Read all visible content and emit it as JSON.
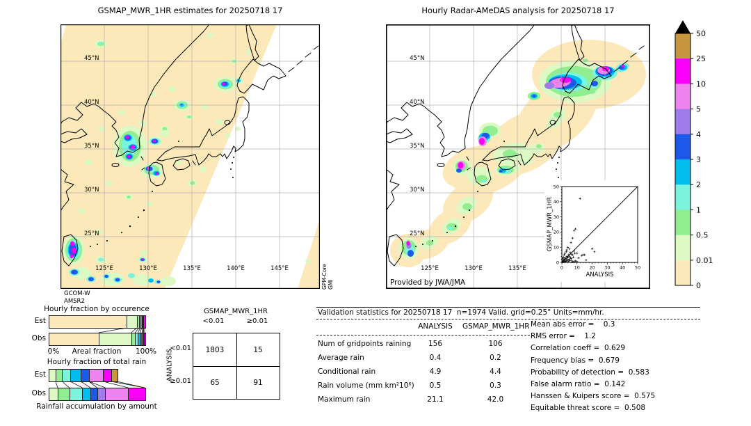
{
  "palette": {
    "cream": "#fce8b9",
    "palegreen": "#dcf9c4",
    "lightgreen": "#90ee90",
    "aqua": "#7bf4dd",
    "sky": "#00bdee",
    "blue": "#1c59e8",
    "purple": "#a07bea",
    "orchid": "#ee82ee",
    "magenta": "#fa00fa",
    "tan": "#c8963c",
    "overflow": "#000000",
    "grid": "#b0b0b0",
    "coast": "#000000",
    "nodata": "#ffffff"
  },
  "chart_data": {
    "map_left": {
      "type": "map",
      "title": "GSMAP_MWR_1HR estimates for 20250718 17",
      "lat_ticks": [
        "45°N",
        "40°N",
        "35°N",
        "30°N",
        "25°N"
      ],
      "lon_ticks": [
        "125°E",
        "130°E",
        "135°E",
        "140°E",
        "145°E"
      ],
      "satellite_lines": [
        "GCOM-W",
        "AMSR2"
      ],
      "swath_sensor_lines": [
        "GPM-Core",
        "GMI"
      ]
    },
    "map_right": {
      "type": "map",
      "title": "Hourly Radar-AMeDAS analysis for 20250718 17",
      "lat_ticks": [
        "45°N",
        "40°N",
        "35°N",
        "30°N",
        "25°N"
      ],
      "lon_ticks": [
        "125°E",
        "130°E",
        "135°E",
        "140°E",
        "145°E"
      ],
      "credit": "Provided by JWA/JMA"
    },
    "colorbar": {
      "type": "colorbar",
      "units": "mm/hr",
      "tick_labels_top_to_bottom": [
        "50",
        "25",
        "10",
        "5",
        "4",
        "3",
        "2",
        "1",
        "0.5",
        "0.01",
        "0"
      ],
      "segment_colors_top_to_bottom": [
        "tan",
        "magenta",
        "orchid",
        "purple",
        "blue",
        "sky",
        "aqua",
        "lightgreen",
        "palegreen",
        "cream"
      ],
      "overflow_marker": "black-triangle"
    },
    "scatter_inset": {
      "type": "scatter",
      "xlabel": "ANALYSIS",
      "ylabel": "GSMAP_MWR_1HR",
      "xlim": [
        0,
        50
      ],
      "ylim": [
        0,
        50
      ],
      "ticks": [
        0,
        10,
        20,
        30,
        40,
        50
      ],
      "one_to_one_line": true,
      "points": [
        [
          0.3,
          0.2
        ],
        [
          0.5,
          0.8
        ],
        [
          0.8,
          0.4
        ],
        [
          1,
          1.2
        ],
        [
          1.2,
          0.3
        ],
        [
          1.5,
          2
        ],
        [
          1.8,
          0.8
        ],
        [
          2,
          1.5
        ],
        [
          2.2,
          3
        ],
        [
          2.5,
          0.5
        ],
        [
          2.8,
          2.2
        ],
        [
          3,
          1
        ],
        [
          3.2,
          4
        ],
        [
          3.5,
          2.8
        ],
        [
          3.8,
          1.5
        ],
        [
          4,
          3.5
        ],
        [
          4.2,
          0.8
        ],
        [
          4.5,
          5
        ],
        [
          4.8,
          2
        ],
        [
          5,
          4
        ],
        [
          5.2,
          1.2
        ],
        [
          5.5,
          6.5
        ],
        [
          5.8,
          3
        ],
        [
          6,
          5.5
        ],
        [
          6.2,
          2.5
        ],
        [
          6.5,
          1
        ],
        [
          7,
          5
        ],
        [
          7.5,
          3.5
        ],
        [
          8,
          7.5
        ],
        [
          8.5,
          6
        ],
        [
          1,
          3.5
        ],
        [
          1.5,
          5
        ],
        [
          2,
          6
        ],
        [
          0.5,
          2.5
        ],
        [
          3,
          7
        ],
        [
          4,
          9.8
        ],
        [
          3.2,
          8.2
        ],
        [
          5,
          8.8
        ],
        [
          6,
          13
        ],
        [
          7,
          16
        ],
        [
          8,
          21
        ],
        [
          9,
          22
        ],
        [
          12,
          42
        ],
        [
          10,
          6
        ],
        [
          11,
          3
        ],
        [
          13,
          4.5
        ],
        [
          14,
          5
        ],
        [
          15,
          5
        ],
        [
          20,
          9
        ],
        [
          21.5,
          7
        ],
        [
          16,
          1.5
        ],
        [
          9,
          1
        ],
        [
          10,
          0.5
        ],
        [
          7,
          0.3
        ],
        [
          8,
          0.5
        ]
      ]
    },
    "occurrence": {
      "type": "bar",
      "title": "Hourly fraction by occurence",
      "xlabel": "Areal fraction",
      "x_min_label": "0%",
      "x_max_label": "100%",
      "rows": [
        {
          "label": "Est",
          "segments": [
            [
              "cream",
              81
            ],
            [
              "palegreen",
              11
            ],
            [
              "lightgreen",
              2
            ],
            [
              "aqua",
              1.5
            ],
            [
              "sky",
              1.3
            ],
            [
              "blue",
              1.2
            ],
            [
              "purple",
              0.8
            ],
            [
              "magenta",
              1.2
            ]
          ]
        },
        {
          "label": "Obs",
          "segments": [
            [
              "cream",
              52
            ],
            [
              "palegreen",
              34
            ],
            [
              "lightgreen",
              4
            ],
            [
              "aqua",
              3
            ],
            [
              "sky",
              2.5
            ],
            [
              "blue",
              1.7
            ],
            [
              "purple",
              1.1
            ],
            [
              "orchid",
              0.7
            ],
            [
              "magenta",
              1
            ]
          ]
        }
      ]
    },
    "total_rain": {
      "type": "bar",
      "title": "Hourly fraction of total rain",
      "caption": "Rainfall accumulation by amount",
      "rows": [
        {
          "label": "Est",
          "segments": [
            [
              "palegreen",
              7
            ],
            [
              "lightgreen",
              7
            ],
            [
              "aqua",
              8.5
            ],
            [
              "sky",
              11
            ],
            [
              "blue",
              8.5
            ],
            [
              "orchid",
              14.5
            ],
            [
              "magenta",
              8.5
            ],
            [
              "tan",
              6
            ]
          ]
        },
        {
          "label": "Obs",
          "segments": [
            [
              "palegreen",
              9.5
            ],
            [
              "lightgreen",
              12
            ],
            [
              "aqua",
              13.5
            ],
            [
              "sky",
              8.5
            ],
            [
              "blue",
              7
            ],
            [
              "purple",
              8.5
            ],
            [
              "orchid",
              24
            ],
            [
              "magenta",
              17
            ]
          ]
        }
      ]
    },
    "contingency": {
      "type": "table",
      "col_group": "GSMAP_MWR_1HR",
      "row_group": "ANALYSIS",
      "col_labels": [
        "<0.01",
        "≥0.01"
      ],
      "row_labels": [
        "<0.01",
        "≥0.01"
      ],
      "cells": [
        [
          "1803",
          "15"
        ],
        [
          "65",
          "91"
        ]
      ]
    },
    "validation": {
      "type": "table",
      "title": "Validation statistics for 20250718 17  n=1974 Valid. grid=0.25° Units=mm/hr.",
      "columns": [
        "ANALYSIS",
        "GSMAP_MWR_1HR"
      ],
      "rows": [
        {
          "label": "Num of gridpoints raining",
          "analysis": "156",
          "gsmap": "106"
        },
        {
          "label": "Average rain",
          "analysis": "0.4",
          "gsmap": "0.2"
        },
        {
          "label": "Conditional rain",
          "analysis": "4.9",
          "gsmap": "4.4"
        },
        {
          "label": "Rain volume (mm km²10⁶)",
          "analysis": "0.5",
          "gsmap": "0.3"
        },
        {
          "label": "Maximum rain",
          "analysis": "21.1",
          "gsmap": "42.0"
        }
      ],
      "scores": [
        "Mean abs error =    0.3",
        "RMS error =    1.2",
        "Correlation coeff =  0.629",
        "Frequency bias =  0.679",
        "Probability of detection =  0.583",
        "False alarm ratio =  0.142",
        "Hanssen & Kuipers score =  0.575",
        "Equitable threat score =  0.508"
      ]
    }
  }
}
